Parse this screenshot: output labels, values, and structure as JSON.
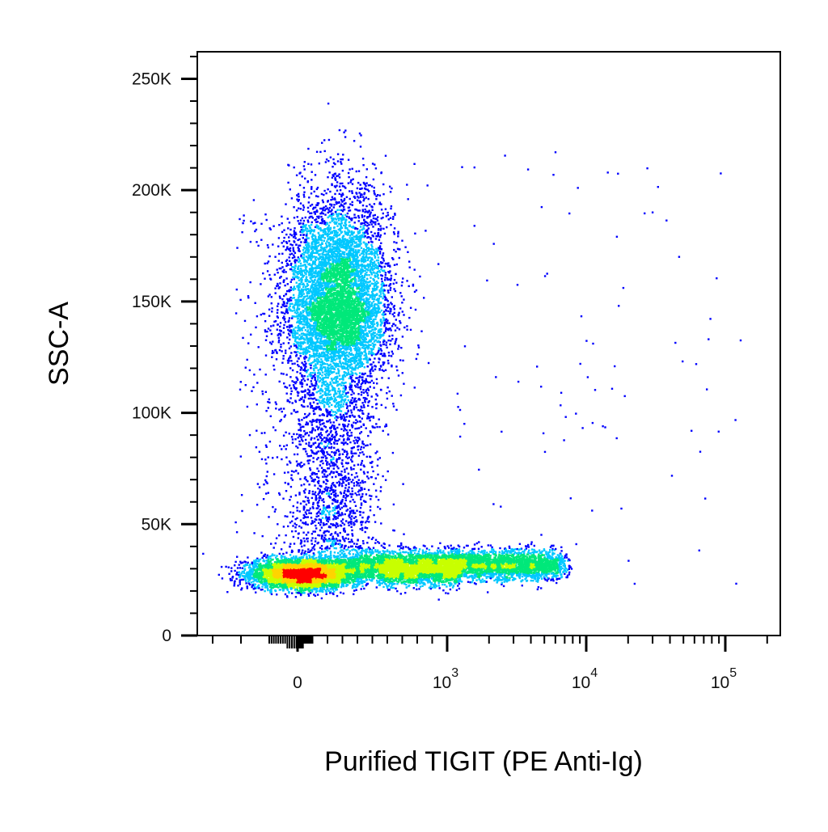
{
  "chart_data": {
    "type": "scatter",
    "subtype": "flow-cytometry-density-dot-plot",
    "xlabel": "Purified TIGIT (PE Anti-Ig)",
    "ylabel": "SSC-A",
    "x_scale": "biexponential",
    "x_ticks": [
      {
        "value": 0,
        "base": "0",
        "exp": ""
      },
      {
        "value": 1000,
        "base": "10",
        "exp": "3"
      },
      {
        "value": 10000,
        "base": "10",
        "exp": "4"
      },
      {
        "value": 100000,
        "base": "10",
        "exp": "5"
      }
    ],
    "y_scale": "linear",
    "ylim": [
      0,
      262144
    ],
    "y_ticks": [
      {
        "value": 0,
        "label": "0"
      },
      {
        "value": 50000,
        "label": "50K"
      },
      {
        "value": 100000,
        "label": "100K"
      },
      {
        "value": 150000,
        "label": "150K"
      },
      {
        "value": 200000,
        "label": "200K"
      },
      {
        "value": 250000,
        "label": "250K"
      }
    ],
    "grid": false,
    "legend": "none",
    "color_scale": [
      "#0000ff",
      "#00c8ff",
      "#00e87a",
      "#c8ff00",
      "#ffd400",
      "#ff0000"
    ],
    "populations": [
      {
        "description": "TIGIT-negative low-SSC cluster",
        "x_center": 40,
        "y_center": 28000,
        "relative_density": "highest"
      },
      {
        "description": "TIGIT-dim high-SSC cluster",
        "x_center": 260,
        "y_center": 150000,
        "relative_density": "high"
      },
      {
        "description": "TIGIT-positive low-SSC tail",
        "x_center": 2500,
        "y_center": 32000,
        "relative_density": "medium"
      }
    ]
  }
}
